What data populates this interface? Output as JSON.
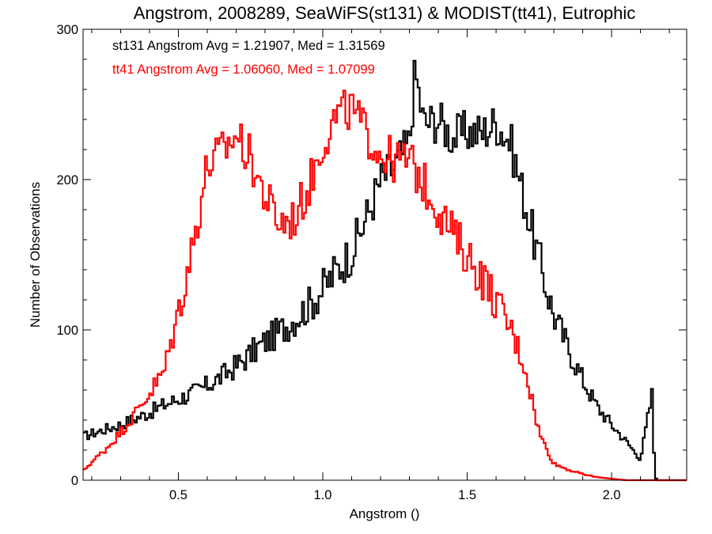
{
  "chart_data": {
    "type": "line",
    "title": "Angstrom, 2008289, SeaWiFS(st131) & MODIST(tt41), Eutrophic",
    "xlabel": "Angstrom ()",
    "ylabel": "Number of Observations",
    "xlim": [
      0.17,
      2.26
    ],
    "ylim": [
      0,
      300
    ],
    "x_ticks": [
      0.5,
      1.0,
      1.5,
      2.0
    ],
    "x_tick_labels": [
      "0.5",
      "1.0",
      "1.5",
      "2.0"
    ],
    "y_ticks": [
      0,
      100,
      200,
      300
    ],
    "y_tick_labels": [
      "0",
      "100",
      "200",
      "300"
    ],
    "grid": false,
    "step": "histogram",
    "annotations": [
      {
        "text": "st131 Angstrom Avg = 1.21907, Med = 1.31569",
        "color": "#000000"
      },
      {
        "text": "tt41 Angstrom Avg = 1.06060, Med = 1.07099",
        "color": "#ff0000"
      }
    ],
    "series": [
      {
        "color": "#000000",
        "x": [
          0.17,
          0.2,
          0.25,
          0.3,
          0.35,
          0.4,
          0.45,
          0.5,
          0.55,
          0.6,
          0.65,
          0.7,
          0.75,
          0.8,
          0.85,
          0.9,
          0.95,
          1.0,
          1.05,
          1.1,
          1.15,
          1.2,
          1.25,
          1.3,
          1.32,
          1.35,
          1.4,
          1.45,
          1.5,
          1.55,
          1.6,
          1.65,
          1.7,
          1.75,
          1.8,
          1.85,
          1.9,
          1.95,
          2.0,
          2.05,
          2.1,
          2.14,
          2.15,
          2.16,
          2.26
        ],
        "values": [
          29,
          31,
          34,
          37,
          41,
          45,
          50,
          54,
          58,
          63,
          69,
          76,
          84,
          92,
          99,
          107,
          116,
          127,
          140,
          152,
          174,
          199,
          209,
          225,
          272,
          237,
          240,
          228,
          232,
          231,
          238,
          225,
          185,
          146,
          110,
          88,
          67,
          49,
          37,
          26,
          14,
          57,
          2,
          0,
          0
        ]
      },
      {
        "color": "#ff0000",
        "x": [
          0.17,
          0.2,
          0.25,
          0.3,
          0.35,
          0.4,
          0.45,
          0.5,
          0.55,
          0.6,
          0.65,
          0.7,
          0.75,
          0.8,
          0.85,
          0.9,
          0.95,
          1.0,
          1.05,
          1.1,
          1.15,
          1.2,
          1.25,
          1.3,
          1.35,
          1.4,
          1.45,
          1.5,
          1.55,
          1.6,
          1.65,
          1.7,
          1.75,
          1.8,
          1.85,
          1.9,
          1.95,
          2.0,
          2.05,
          2.1,
          2.15,
          2.2,
          2.26
        ],
        "values": [
          6,
          12,
          21,
          32,
          44,
          58,
          72,
          112,
          156,
          209,
          218,
          230,
          214,
          189,
          171,
          174,
          194,
          225,
          243,
          247,
          231,
          218,
          212,
          213,
          197,
          181,
          164,
          150,
          136,
          119,
          101,
          76,
          31,
          11,
          7,
          4,
          2,
          1,
          0,
          0,
          0,
          0,
          0
        ]
      }
    ]
  }
}
